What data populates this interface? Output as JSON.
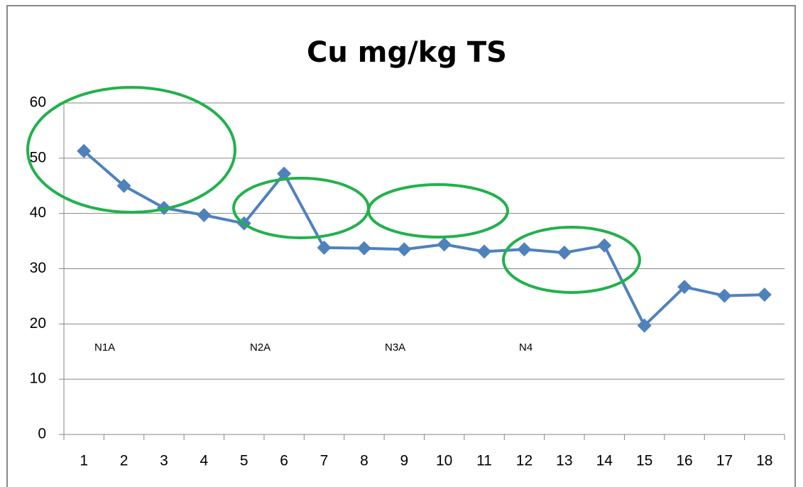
{
  "chart_data": {
    "type": "line",
    "title": "Cu mg/kg TS",
    "categories": [
      "1",
      "2",
      "3",
      "4",
      "5",
      "6",
      "7",
      "8",
      "9",
      "10",
      "11",
      "12",
      "13",
      "14",
      "15",
      "16",
      "17",
      "18"
    ],
    "series": [
      {
        "name": "Cu",
        "color": "#4f81bd",
        "values": [
          51.3,
          45.0,
          41.0,
          39.7,
          38.2,
          47.2,
          33.8,
          33.7,
          33.5,
          34.4,
          33.1,
          33.5,
          32.9,
          34.2,
          19.7,
          26.7,
          25.1,
          25.3
        ]
      }
    ],
    "ylim": [
      0,
      60
    ],
    "yticks": [
      0,
      10,
      20,
      30,
      40,
      50,
      60
    ],
    "grid": true,
    "annotations": [
      "N1A",
      "N2A",
      "N3A",
      "N4"
    ]
  }
}
